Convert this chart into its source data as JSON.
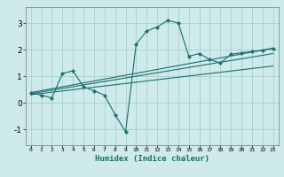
{
  "title": "",
  "xlabel": "Humidex (Indice chaleur)",
  "xlim": [
    -0.5,
    23.5
  ],
  "ylim": [
    -1.6,
    3.6
  ],
  "xticks": [
    0,
    1,
    2,
    3,
    4,
    5,
    6,
    7,
    8,
    9,
    10,
    11,
    12,
    13,
    14,
    15,
    16,
    17,
    18,
    19,
    20,
    21,
    22,
    23
  ],
  "yticks": [
    -1,
    0,
    1,
    2,
    3
  ],
  "bg_color": "#ceeaea",
  "grid_color": "#aacece",
  "line_color": "#1a6e6e",
  "data_x": [
    0,
    1,
    2,
    3,
    4,
    5,
    6,
    7,
    8,
    9,
    10,
    11,
    12,
    13,
    14,
    15,
    16,
    17,
    18,
    19,
    20,
    21,
    22,
    23
  ],
  "data_y": [
    0.38,
    0.28,
    0.18,
    1.1,
    1.2,
    0.6,
    0.45,
    0.28,
    -0.45,
    -1.1,
    2.2,
    2.7,
    2.85,
    3.1,
    3.0,
    1.75,
    1.85,
    1.62,
    1.5,
    1.82,
    1.88,
    1.93,
    1.97,
    2.05
  ],
  "trend1_x": [
    0,
    23
  ],
  "trend1_y": [
    0.38,
    2.05
  ],
  "trend2_x": [
    0,
    23
  ],
  "trend2_y": [
    0.3,
    1.38
  ],
  "trend3_x": [
    0,
    23
  ],
  "trend3_y": [
    0.34,
    1.85
  ]
}
